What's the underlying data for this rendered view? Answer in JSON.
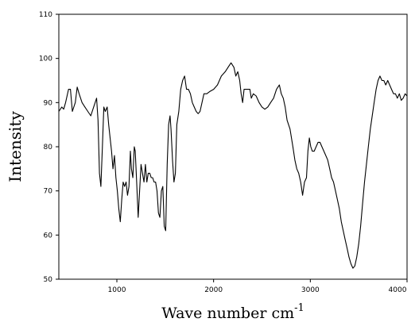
{
  "chart_data": {
    "type": "line",
    "xlabel": "Wave number cm",
    "xlabel_superscript": "-1",
    "ylabel": "Intensity",
    "xlim": [
      400,
      4000
    ],
    "ylim": [
      50,
      110
    ],
    "xticks": [
      1000,
      2000,
      3000,
      4000
    ],
    "yticks": [
      50,
      60,
      70,
      80,
      90,
      100,
      110
    ],
    "grid": false,
    "series": [
      {
        "points": [
          [
            400,
            88
          ],
          [
            430,
            89
          ],
          [
            450,
            88.5
          ],
          [
            470,
            90
          ],
          [
            500,
            93
          ],
          [
            520,
            93
          ],
          [
            540,
            88
          ],
          [
            570,
            90
          ],
          [
            590,
            93.5
          ],
          [
            610,
            92
          ],
          [
            640,
            90
          ],
          [
            670,
            89
          ],
          [
            700,
            88
          ],
          [
            730,
            87
          ],
          [
            760,
            89
          ],
          [
            790,
            91
          ],
          [
            805,
            86
          ],
          [
            820,
            74
          ],
          [
            835,
            71
          ],
          [
            850,
            80
          ],
          [
            865,
            89
          ],
          [
            880,
            88
          ],
          [
            900,
            89
          ],
          [
            915,
            85
          ],
          [
            930,
            82
          ],
          [
            945,
            79
          ],
          [
            960,
            75
          ],
          [
            975,
            78
          ],
          [
            990,
            73
          ],
          [
            1005,
            70
          ],
          [
            1020,
            66
          ],
          [
            1035,
            63
          ],
          [
            1050,
            68
          ],
          [
            1065,
            72
          ],
          [
            1080,
            71
          ],
          [
            1095,
            72
          ],
          [
            1110,
            69
          ],
          [
            1125,
            71
          ],
          [
            1140,
            79
          ],
          [
            1150,
            75
          ],
          [
            1165,
            73
          ],
          [
            1180,
            80
          ],
          [
            1190,
            79
          ],
          [
            1205,
            72
          ],
          [
            1220,
            64
          ],
          [
            1235,
            70
          ],
          [
            1250,
            76
          ],
          [
            1265,
            74
          ],
          [
            1280,
            72
          ],
          [
            1295,
            76
          ],
          [
            1310,
            72
          ],
          [
            1325,
            74
          ],
          [
            1340,
            74
          ],
          [
            1355,
            73
          ],
          [
            1370,
            73
          ],
          [
            1385,
            72
          ],
          [
            1400,
            72
          ],
          [
            1415,
            70
          ],
          [
            1430,
            65
          ],
          [
            1445,
            64
          ],
          [
            1460,
            70
          ],
          [
            1475,
            71
          ],
          [
            1490,
            62
          ],
          [
            1505,
            61
          ],
          [
            1520,
            76
          ],
          [
            1535,
            85
          ],
          [
            1550,
            87
          ],
          [
            1560,
            84
          ],
          [
            1575,
            77
          ],
          [
            1590,
            72
          ],
          [
            1605,
            74
          ],
          [
            1620,
            85
          ],
          [
            1640,
            88
          ],
          [
            1660,
            93
          ],
          [
            1680,
            95
          ],
          [
            1700,
            96
          ],
          [
            1720,
            93
          ],
          [
            1740,
            93
          ],
          [
            1760,
            92
          ],
          [
            1780,
            90
          ],
          [
            1800,
            89
          ],
          [
            1820,
            88
          ],
          [
            1840,
            87.5
          ],
          [
            1860,
            88
          ],
          [
            1880,
            90
          ],
          [
            1900,
            92
          ],
          [
            1930,
            92
          ],
          [
            1960,
            92.5
          ],
          [
            2000,
            93
          ],
          [
            2040,
            94
          ],
          [
            2080,
            96
          ],
          [
            2120,
            97
          ],
          [
            2150,
            98
          ],
          [
            2180,
            99
          ],
          [
            2210,
            98
          ],
          [
            2230,
            96
          ],
          [
            2250,
            97
          ],
          [
            2270,
            95
          ],
          [
            2285,
            92
          ],
          [
            2300,
            90
          ],
          [
            2315,
            93
          ],
          [
            2330,
            93
          ],
          [
            2345,
            93
          ],
          [
            2360,
            93
          ],
          [
            2375,
            93
          ],
          [
            2390,
            91
          ],
          [
            2410,
            92
          ],
          [
            2440,
            91.5
          ],
          [
            2470,
            90
          ],
          [
            2500,
            89
          ],
          [
            2530,
            88.5
          ],
          [
            2560,
            89
          ],
          [
            2590,
            90
          ],
          [
            2620,
            91
          ],
          [
            2650,
            93
          ],
          [
            2680,
            94
          ],
          [
            2700,
            92
          ],
          [
            2720,
            91
          ],
          [
            2740,
            89
          ],
          [
            2760,
            86
          ],
          [
            2790,
            84
          ],
          [
            2820,
            80
          ],
          [
            2840,
            77
          ],
          [
            2860,
            75
          ],
          [
            2880,
            74
          ],
          [
            2900,
            72
          ],
          [
            2920,
            69
          ],
          [
            2940,
            72
          ],
          [
            2960,
            73
          ],
          [
            2975,
            79
          ],
          [
            2990,
            82
          ],
          [
            3005,
            80
          ],
          [
            3020,
            79
          ],
          [
            3040,
            79
          ],
          [
            3060,
            80
          ],
          [
            3080,
            81
          ],
          [
            3100,
            81
          ],
          [
            3120,
            80
          ],
          [
            3140,
            79
          ],
          [
            3160,
            78
          ],
          [
            3180,
            77
          ],
          [
            3200,
            75
          ],
          [
            3220,
            73
          ],
          [
            3240,
            72
          ],
          [
            3260,
            70
          ],
          [
            3280,
            68
          ],
          [
            3300,
            66
          ],
          [
            3320,
            63
          ],
          [
            3340,
            61
          ],
          [
            3360,
            59
          ],
          [
            3380,
            57
          ],
          [
            3400,
            55
          ],
          [
            3420,
            53.5
          ],
          [
            3440,
            52.5
          ],
          [
            3460,
            53
          ],
          [
            3480,
            55
          ],
          [
            3500,
            58
          ],
          [
            3520,
            62
          ],
          [
            3540,
            67
          ],
          [
            3560,
            72
          ],
          [
            3580,
            76
          ],
          [
            3600,
            80
          ],
          [
            3620,
            84
          ],
          [
            3640,
            87
          ],
          [
            3660,
            90
          ],
          [
            3680,
            93
          ],
          [
            3700,
            95
          ],
          [
            3720,
            96
          ],
          [
            3740,
            95
          ],
          [
            3760,
            95
          ],
          [
            3780,
            94
          ],
          [
            3800,
            95
          ],
          [
            3820,
            94
          ],
          [
            3840,
            93
          ],
          [
            3860,
            92
          ],
          [
            3880,
            92
          ],
          [
            3900,
            91
          ],
          [
            3920,
            92
          ],
          [
            3940,
            90.5
          ],
          [
            3960,
            91
          ],
          [
            3980,
            92
          ],
          [
            4000,
            91.5
          ]
        ]
      }
    ]
  }
}
